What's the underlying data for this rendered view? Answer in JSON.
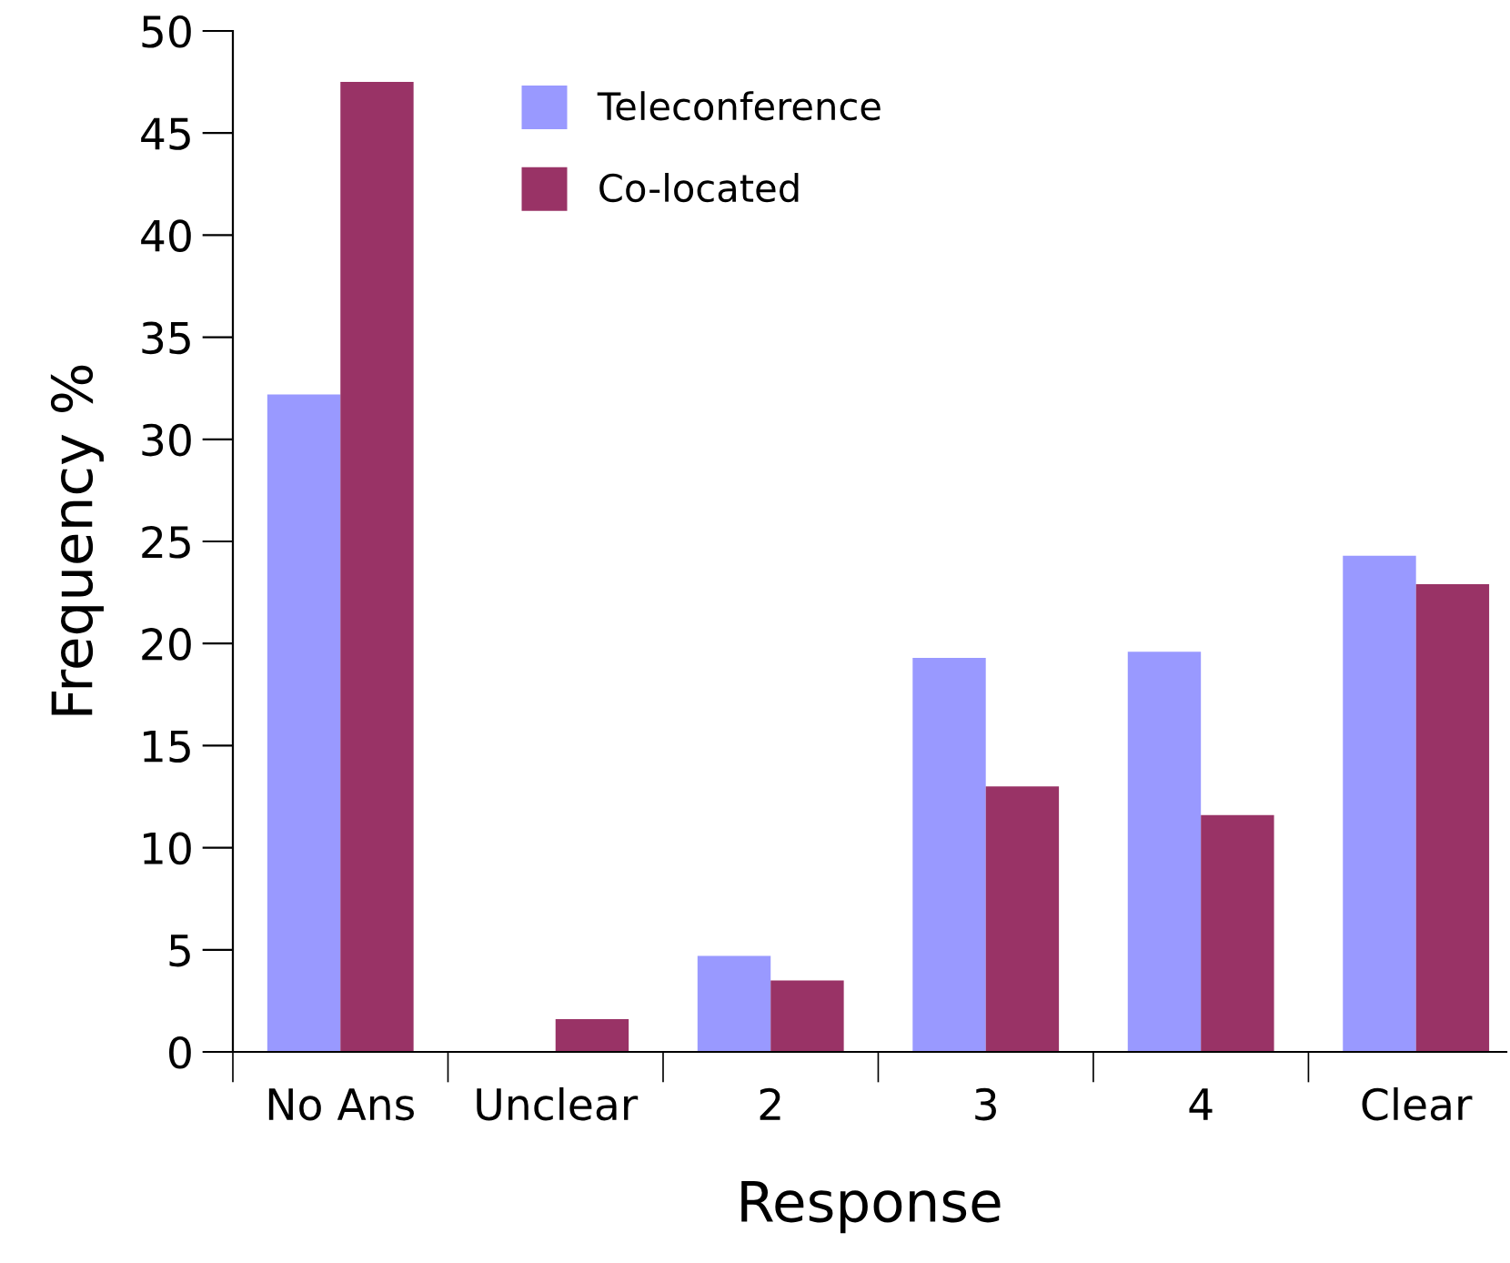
{
  "chart_data": {
    "type": "bar",
    "xlabel": "Response",
    "ylabel": "Frequency %",
    "categories": [
      "No Ans",
      "Unclear",
      "2",
      "3",
      "4",
      "Clear"
    ],
    "series": [
      {
        "name": "Teleconference",
        "color": "#9999ff",
        "values": [
          32.2,
          0,
          4.7,
          19.3,
          19.6,
          24.3
        ]
      },
      {
        "name": "Co-located",
        "color": "#993366",
        "values": [
          47.5,
          1.6,
          3.5,
          13.0,
          11.6,
          22.9
        ]
      }
    ],
    "ylim": [
      0,
      50
    ],
    "yticks": [
      0,
      5,
      10,
      15,
      20,
      25,
      30,
      35,
      40,
      45,
      50
    ],
    "grid": false,
    "legend": "top left"
  }
}
